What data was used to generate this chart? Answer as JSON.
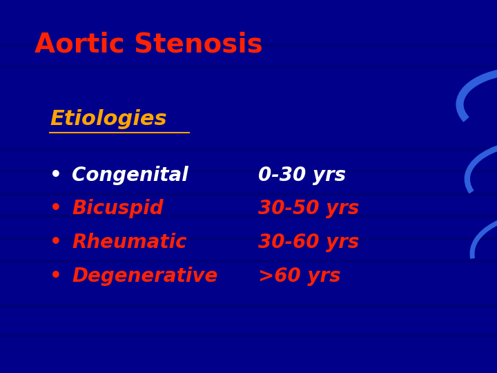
{
  "title": "Aortic Stenosis",
  "title_color": "#FF2200",
  "subtitle": "Etiologies",
  "subtitle_color": "#FFA500",
  "background_color": "#00008B",
  "bullet_items": [
    "Congenital",
    "Bicuspid",
    "Rheumatic",
    "Degenerative"
  ],
  "age_items": [
    "0-30 yrs",
    "30-50 yrs",
    "30-60 yrs",
    ">60 yrs"
  ],
  "bullet_colors": [
    "#FFFFFF",
    "#FF2200",
    "#FF2200",
    "#FF2200"
  ],
  "age_colors": [
    "#FFFFFF",
    "#FF2200",
    "#FF2200",
    "#FF2200"
  ],
  "bullet_dot_colors": [
    "#FFFFFF",
    "#FF2200",
    "#FF2200",
    "#FF2200"
  ],
  "title_fontsize": 28,
  "subtitle_fontsize": 22,
  "bullet_fontsize": 20,
  "age_fontsize": 20,
  "stripe_color": "#000066",
  "stripe_alpha": 0.5
}
